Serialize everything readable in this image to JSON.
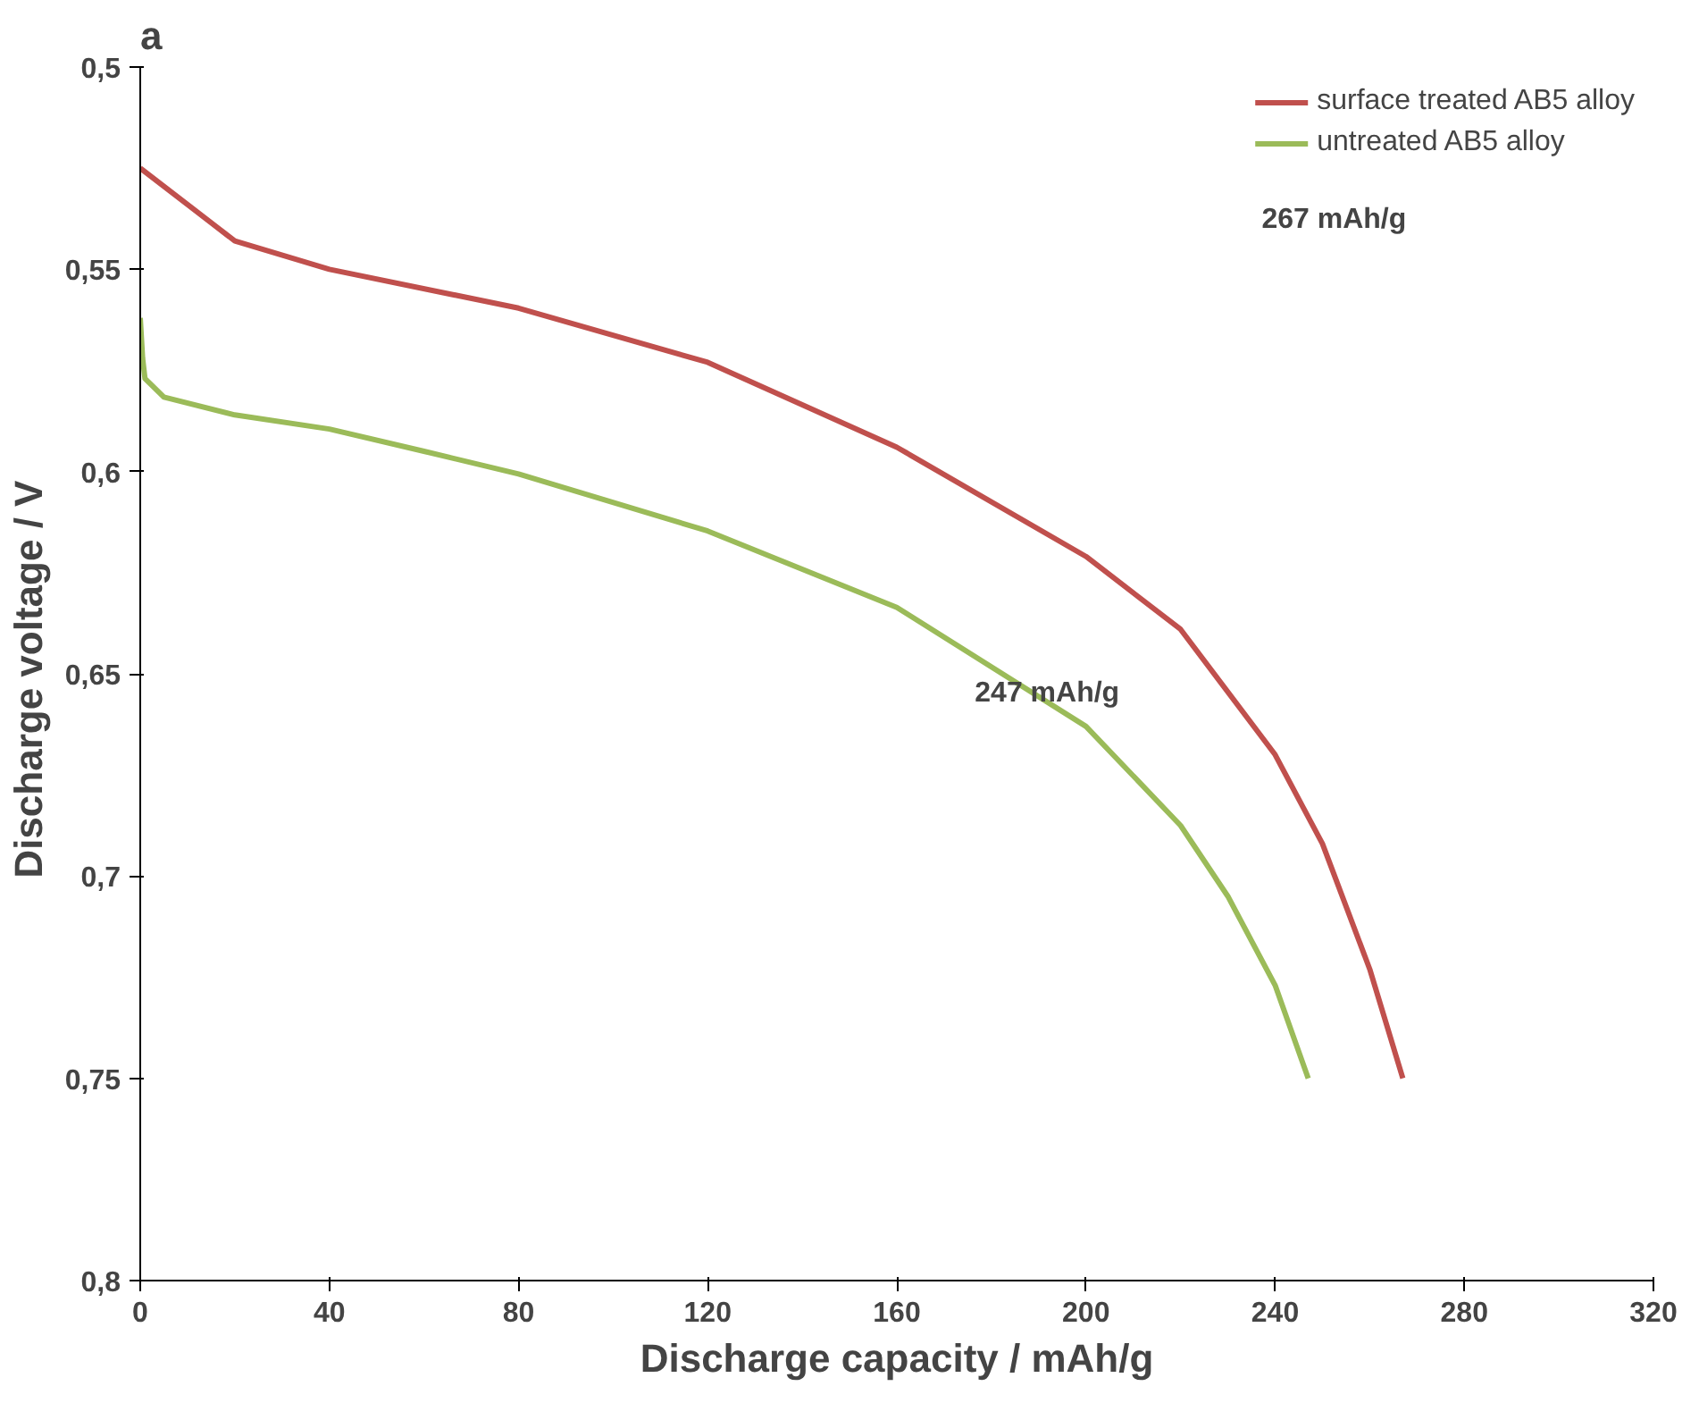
{
  "chart_data": {
    "type": "line",
    "title": "a",
    "xlabel": "Discharge capacity / mAh/g",
    "ylabel": "Discharge  voltage / V",
    "xlim": [
      0,
      320
    ],
    "ylim": [
      0.8,
      0.5
    ],
    "xticks": [
      0,
      40,
      80,
      120,
      160,
      200,
      240,
      280,
      320
    ],
    "yticks": [
      {
        "value": 0.5,
        "label": "0,5"
      },
      {
        "value": 0.55,
        "label": "0,55"
      },
      {
        "value": 0.6,
        "label": "0,6"
      },
      {
        "value": 0.65,
        "label": "0,65"
      },
      {
        "value": 0.7,
        "label": "0,7"
      },
      {
        "value": 0.75,
        "label": "0,75"
      },
      {
        "value": 0.8,
        "label": "0,8"
      }
    ],
    "grid": false,
    "legend": "top right",
    "marker": "none",
    "line_style": "solid",
    "series": [
      {
        "name": "surface treated AB5 alloy",
        "color": "#c0504d",
        "x": [
          0,
          10,
          20,
          40,
          80,
          120,
          160,
          200,
          220,
          240,
          250,
          260,
          267
        ],
        "values": [
          0.525,
          0.534,
          0.543,
          0.55,
          0.5596,
          0.573,
          0.594,
          0.621,
          0.639,
          0.67,
          0.692,
          0.723,
          0.75
        ]
      },
      {
        "name": "untreated AB5 alloy",
        "color": "#9bbb59",
        "x": [
          0,
          0.5,
          1,
          5,
          20,
          40,
          60,
          80,
          120,
          160,
          200,
          220,
          230,
          240,
          247
        ],
        "values": [
          0.562,
          0.572,
          0.577,
          0.5816,
          0.586,
          0.5895,
          0.595,
          0.6006,
          0.6147,
          0.6336,
          0.663,
          0.6875,
          0.705,
          0.727,
          0.75
        ]
      }
    ],
    "annotations": [
      "267 mAh/g",
      "247 mAh/g"
    ]
  }
}
